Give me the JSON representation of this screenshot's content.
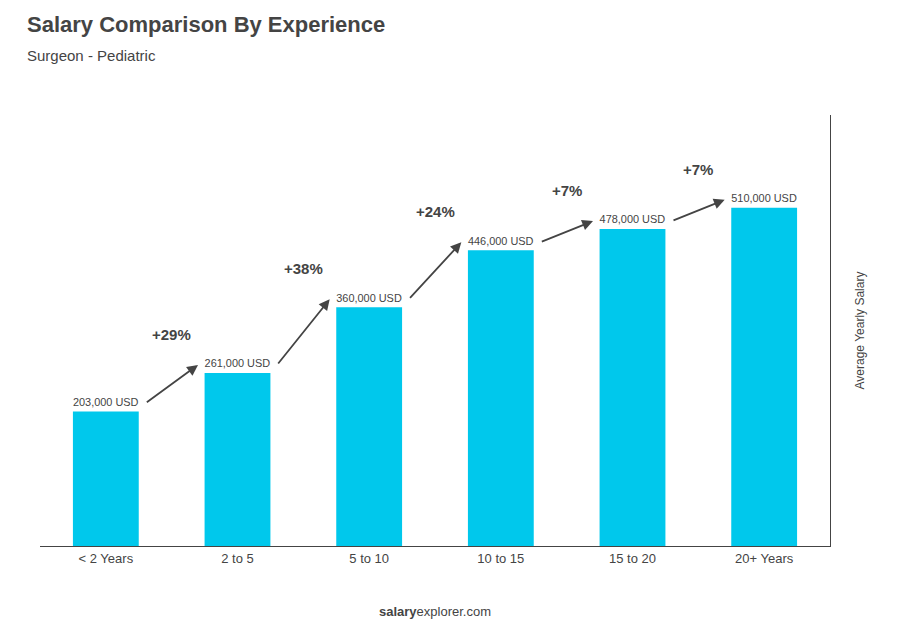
{
  "chart_data": {
    "type": "bar",
    "title": "Salary Comparison By Experience",
    "subtitle": "Surgeon - Pediatric",
    "ylabel": "Average Yearly Salary",
    "categories": [
      "< 2 Years",
      "2 to 5",
      "5 to 10",
      "10 to 15",
      "15 to 20",
      "20+ Years"
    ],
    "values": [
      203000,
      261000,
      360000,
      446000,
      478000,
      510000
    ],
    "value_labels": [
      "203,000 USD",
      "261,000 USD",
      "360,000 USD",
      "446,000 USD",
      "478,000 USD",
      "510,000 USD"
    ],
    "data_labels": true,
    "annotations": [
      {
        "text": "+29%",
        "from": "< 2 Years",
        "to": "2 to 5"
      },
      {
        "text": "+38%",
        "from": "2 to 5",
        "to": "5 to 10"
      },
      {
        "text": "+24%",
        "from": "5 to 10",
        "to": "10 to 15"
      },
      {
        "text": "+7%",
        "from": "10 to 15",
        "to": "15 to 20"
      },
      {
        "text": "+7%",
        "from": "15 to 20",
        "to": "20+ Years"
      }
    ],
    "footer": [
      "salary",
      "explorer.com"
    ],
    "color": "#00C8EC",
    "ylim": [
      0,
      650000
    ],
    "tick_labels": "x",
    "grid": false
  }
}
